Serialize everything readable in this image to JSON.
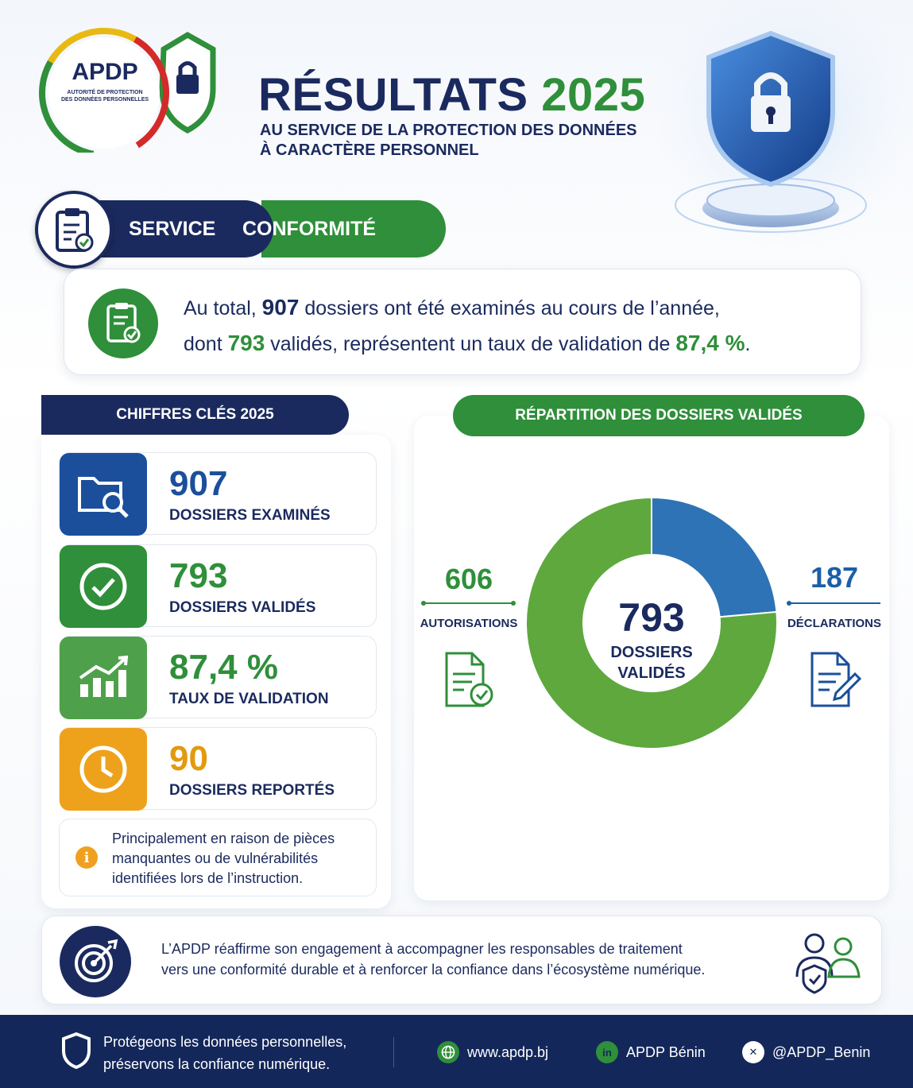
{
  "brand": {
    "acronym": "APDP",
    "full_name_line1": "AUTORITÉ DE PROTECTION",
    "full_name_line2": "DES DONNÉES PERSONNELLES"
  },
  "header": {
    "title_main": "RÉSULTATS",
    "title_year": "2025",
    "subtitle_line1": "AU SERVICE DE LA PROTECTION DES DONNÉES",
    "subtitle_line2": "À CARACTÈRE PERSONNEL"
  },
  "service": {
    "label": "SERVICE",
    "name": "CONFORMITÉ"
  },
  "summary": {
    "part1": "Au total, ",
    "total": "907",
    "part2": " dossiers ont été examinés au cours de l’année,",
    "part3": "dont ",
    "validated": "793",
    "part4": " validés, représentent un taux de validation de ",
    "rate": "87,4 %",
    "part5": "."
  },
  "key_figures": {
    "heading": "CHIFFRES CLÉS 2025",
    "items": [
      {
        "value": "907",
        "label": "DOSSIERS EXAMINÉS",
        "icon": "folder-search-icon",
        "color": "#1b4f9c",
        "value_color": "#1b4f9c"
      },
      {
        "value": "793",
        "label": "DOSSIERS VALIDÉS",
        "icon": "check-circle-icon",
        "color": "#2f8f3a",
        "value_color": "#2f8f3a"
      },
      {
        "value": "87,4 %",
        "label": "TAUX DE VALIDATION",
        "icon": "growth-chart-icon",
        "color": "#4ea14a",
        "value_color": "#2f8f3a"
      },
      {
        "value": "90",
        "label": "DOSSIERS REPORTÉS",
        "icon": "clock-icon",
        "color": "#eea21b",
        "value_color": "#e39a10"
      }
    ],
    "note": {
      "line1": "Principalement en raison de pièces",
      "line2": "manquantes ou de vulnérabilités",
      "line3": "identifiées lors de l’instruction."
    }
  },
  "distribution": {
    "heading": "RÉPARTITION DES DOSSIERS VALIDÉS",
    "center_value": "793",
    "center_label_line1": "DOSSIERS",
    "center_label_line2": "VALIDÉS",
    "left_value": "606",
    "left_label": "AUTORISATIONS",
    "right_value": "187",
    "right_label": "DÉCLARATIONS"
  },
  "chart_data": {
    "type": "pie",
    "categories": [
      "AUTORISATIONS",
      "DÉCLARATIONS"
    ],
    "values": [
      606,
      187
    ],
    "colors": [
      "#5ea83e",
      "#2e73b5"
    ],
    "center_value": 793
  },
  "engagement": {
    "line1": "L’APDP réaffirme son engagement à accompagner les responsables de traitement",
    "line2": "vers une conformité durable et à renforcer la confiance dans l’écosystème numérique."
  },
  "footer": {
    "slogan_line1": "Protégeons les données personnelles,",
    "slogan_line2": "préservons la confiance numérique.",
    "website": "www.apdp.bj",
    "linkedin": "APDP Bénin",
    "twitter": "@APDP_Benin"
  },
  "colors": {
    "navy": "#1b2a5e",
    "green": "#2f8f3a",
    "blue": "#1b4f9c",
    "orange": "#eea21b"
  }
}
